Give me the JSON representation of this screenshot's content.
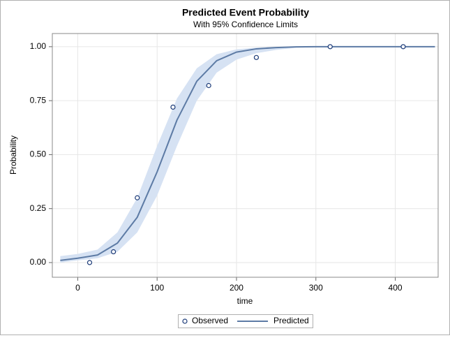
{
  "chart_data": {
    "type": "line",
    "title": "Predicted Event Probability",
    "subtitle": "With 95% Confidence Limits",
    "x_label": "time",
    "y_label": "Probability",
    "xlim": [
      -32,
      454
    ],
    "ylim": [
      -0.068,
      1.061
    ],
    "xticks": [
      0,
      100,
      200,
      300,
      400
    ],
    "yticks": [
      {
        "value": 0,
        "label": "0.00"
      },
      {
        "value": 0.25,
        "label": "0.25"
      },
      {
        "value": 0.5,
        "label": "0.50"
      },
      {
        "value": 0.75,
        "label": "0.75"
      },
      {
        "value": 1,
        "label": "1.00"
      }
    ],
    "grid": true,
    "band_color": "#d6e2f3",
    "series": [
      {
        "name": "Observed",
        "type": "scatter",
        "color": "#1c3b78",
        "x": [
          15,
          45,
          75,
          120,
          165,
          225,
          318,
          410
        ],
        "values": [
          0,
          0.05,
          0.3,
          0.72,
          0.82,
          0.95,
          1,
          1
        ]
      },
      {
        "name": "Predicted",
        "type": "line",
        "color": "#5d7ba5",
        "x": [
          -22,
          0,
          25,
          50,
          75,
          100,
          125,
          150,
          175,
          200,
          225,
          250,
          275,
          300,
          350,
          400,
          450
        ],
        "values": [
          0.01,
          0.02,
          0.035,
          0.09,
          0.21,
          0.42,
          0.66,
          0.84,
          0.935,
          0.975,
          0.99,
          0.996,
          0.999,
          1,
          1,
          1,
          1
        ],
        "lower": [
          0,
          0.01,
          0.02,
          0.05,
          0.14,
          0.31,
          0.54,
          0.75,
          0.88,
          0.94,
          0.97,
          0.985,
          0.995,
          0.998,
          1,
          1,
          1
        ],
        "upper": [
          0.03,
          0.04,
          0.06,
          0.14,
          0.3,
          0.54,
          0.76,
          0.9,
          0.965,
          0.988,
          0.996,
          0.999,
          1,
          1,
          1,
          1,
          1
        ]
      }
    ]
  }
}
